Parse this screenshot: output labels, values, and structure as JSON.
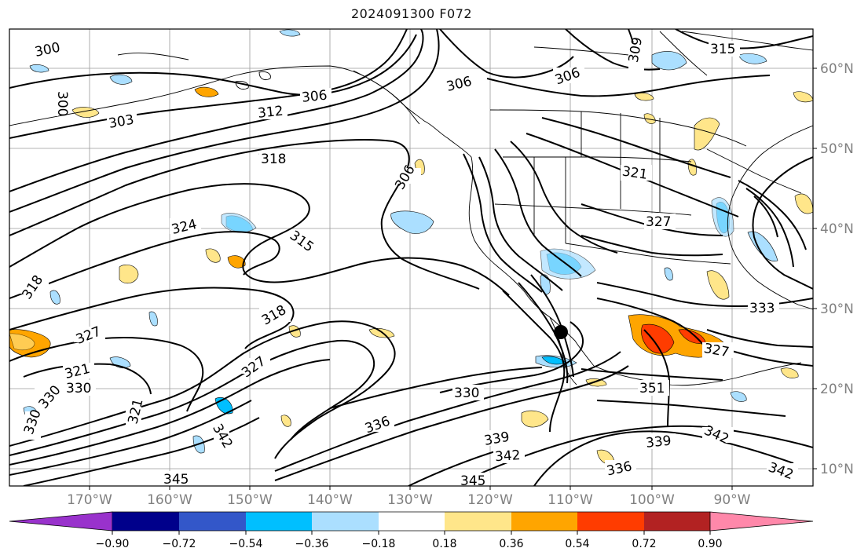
{
  "title": "2024091300 F072",
  "map": {
    "lon_labels": [
      "170°W",
      "160°W",
      "150°W",
      "140°W",
      "130°W",
      "120°W",
      "110°W",
      "100°W",
      "90°W"
    ],
    "lat_labels": [
      "60°N",
      "50°N",
      "40°N",
      "30°N",
      "20°N",
      "10°N"
    ],
    "contour_labels": [
      "300",
      "300",
      "303",
      "306",
      "306",
      "306",
      "306",
      "309",
      "312",
      "315",
      "315",
      "318",
      "318",
      "318",
      "321",
      "321",
      "321",
      "324",
      "327",
      "327",
      "327",
      "327",
      "330",
      "330",
      "330",
      "330",
      "333",
      "336",
      "336",
      "339",
      "339",
      "342",
      "342",
      "342",
      "342",
      "345",
      "345",
      "351"
    ],
    "marker": "black-circle"
  },
  "colorbar": {
    "tick_labels": [
      "−0.90",
      "−0.72",
      "−0.54",
      "−0.36",
      "−0.18",
      "0.18",
      "0.36",
      "0.54",
      "0.72",
      "0.90"
    ],
    "colors": [
      "#9932cc",
      "#00008b",
      "#3357c9",
      "#00bfff",
      "#abdfff",
      "#ffffff",
      "#ffe68a",
      "#ffa500",
      "#ff3c00",
      "#b22222",
      "#ff88aa"
    ]
  }
}
